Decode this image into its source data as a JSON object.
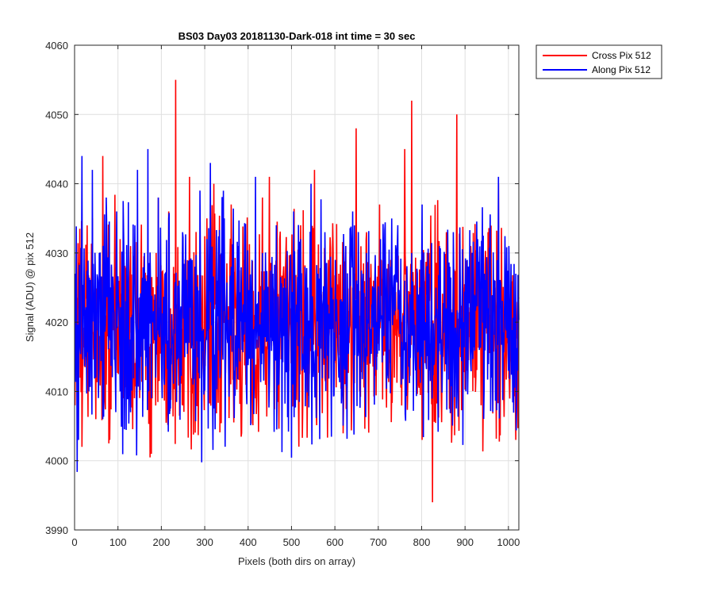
{
  "chart_data": {
    "type": "line",
    "title": "BS03 Day03 20181130-Dark-018 int time = 30 sec",
    "xlabel": "Pixels (both dirs on array)",
    "ylabel": "Signal (ADU) @ pix 512",
    "xlim": [
      0,
      1024
    ],
    "ylim": [
      3990,
      4060
    ],
    "xticks": [
      0,
      100,
      200,
      300,
      400,
      500,
      600,
      700,
      800,
      900,
      1000
    ],
    "yticks": [
      3990,
      4000,
      4010,
      4020,
      4030,
      4040,
      4050,
      4060
    ],
    "grid": true,
    "legend_position": "outside-top-right",
    "series": [
      {
        "name": "Cross Pix 512",
        "color": "#ff0000",
        "x_start": 1,
        "x_step": 8,
        "values": [
          4008,
          4022,
          4002,
          4015,
          4026,
          4035,
          4006,
          4018,
          4044,
          4011,
          4003,
          4025,
          4016,
          4032,
          4009,
          4020,
          4031,
          4014,
          4022,
          4028,
          4019,
          4027,
          4001,
          4024,
          4038,
          4013,
          4026,
          4036,
          4018,
          4055,
          4025,
          4008,
          4020,
          4041,
          4017,
          4023,
          4030,
          4015,
          4035,
          4028,
          4040,
          4021,
          4013,
          4026,
          4017,
          4037,
          4022,
          4029,
          4004,
          4033,
          4015,
          4024,
          4009,
          4020,
          4038,
          4014,
          4041,
          4025,
          4018,
          4032,
          4027,
          4016,
          4022,
          4010,
          4019,
          4034,
          4021,
          4013,
          4026,
          4042,
          4018,
          4024,
          4012,
          4029,
          4020,
          4015,
          4027,
          4023,
          4031,
          4017,
          4025,
          4048,
          4010,
          4022,
          4033,
          4019,
          4026,
          4015,
          4021,
          4030,
          4014,
          4029,
          4012,
          4024,
          4020,
          4045,
          4016,
          4052,
          4018,
          4011,
          4003,
          4025,
          4030,
          3994,
          4020,
          4027,
          4015,
          4033,
          4021,
          4029,
          4050,
          4018,
          4025,
          4013,
          4031,
          4022,
          4027,
          4008,
          4020,
          4033,
          4015,
          4025,
          4040,
          4021,
          4026,
          4012,
          4018,
          4003,
          3993,
          4013
        ],
        "extremes": {
          "max": 4055,
          "min": 3992
        }
      },
      {
        "name": "Along Pix 512",
        "color": "#0000ff",
        "x_start": 1,
        "x_step": 8,
        "values": [
          4027,
          4003,
          4044,
          4015,
          4010,
          4042,
          4012,
          4030,
          4006,
          4038,
          4018,
          4025,
          4036,
          4010,
          4033,
          4020,
          4007,
          4028,
          4042,
          4015,
          4030,
          4045,
          4009,
          4024,
          4038,
          4012,
          4027,
          4035,
          4018,
          4022,
          4026,
          4033,
          4017,
          4029,
          4011,
          4024,
          4039,
          4019,
          4032,
          4043,
          4014,
          4026,
          4021,
          4035,
          4017,
          4028,
          4013,
          4031,
          4022,
          4020,
          4016,
          4029,
          4041,
          4018,
          4030,
          4024,
          4011,
          4027,
          4034,
          4019,
          4025,
          4013,
          4028,
          4036,
          4020,
          4032,
          4018,
          4025,
          4040,
          4014,
          4027,
          4021,
          4033,
          4017,
          4025,
          4029,
          4012,
          4023,
          4031,
          4019,
          4036,
          4022,
          4015,
          4027,
          4030,
          4014,
          4025,
          4020,
          4032,
          4018,
          4023,
          4028,
          4021,
          4034,
          4011,
          4026,
          4019,
          4030,
          4015,
          4024,
          4037,
          4020,
          4027,
          4013,
          4025,
          4031,
          4018,
          4022,
          4028,
          4033,
          4016,
          4026,
          4020,
          4029,
          4014,
          4024,
          4032,
          4019,
          4027,
          4022,
          4012,
          4026,
          4041,
          4018,
          4025,
          4031,
          4015,
          4027,
          4020,
          4041
        ],
        "extremes": {
          "max": 4045,
          "min": 3994
        }
      }
    ]
  }
}
